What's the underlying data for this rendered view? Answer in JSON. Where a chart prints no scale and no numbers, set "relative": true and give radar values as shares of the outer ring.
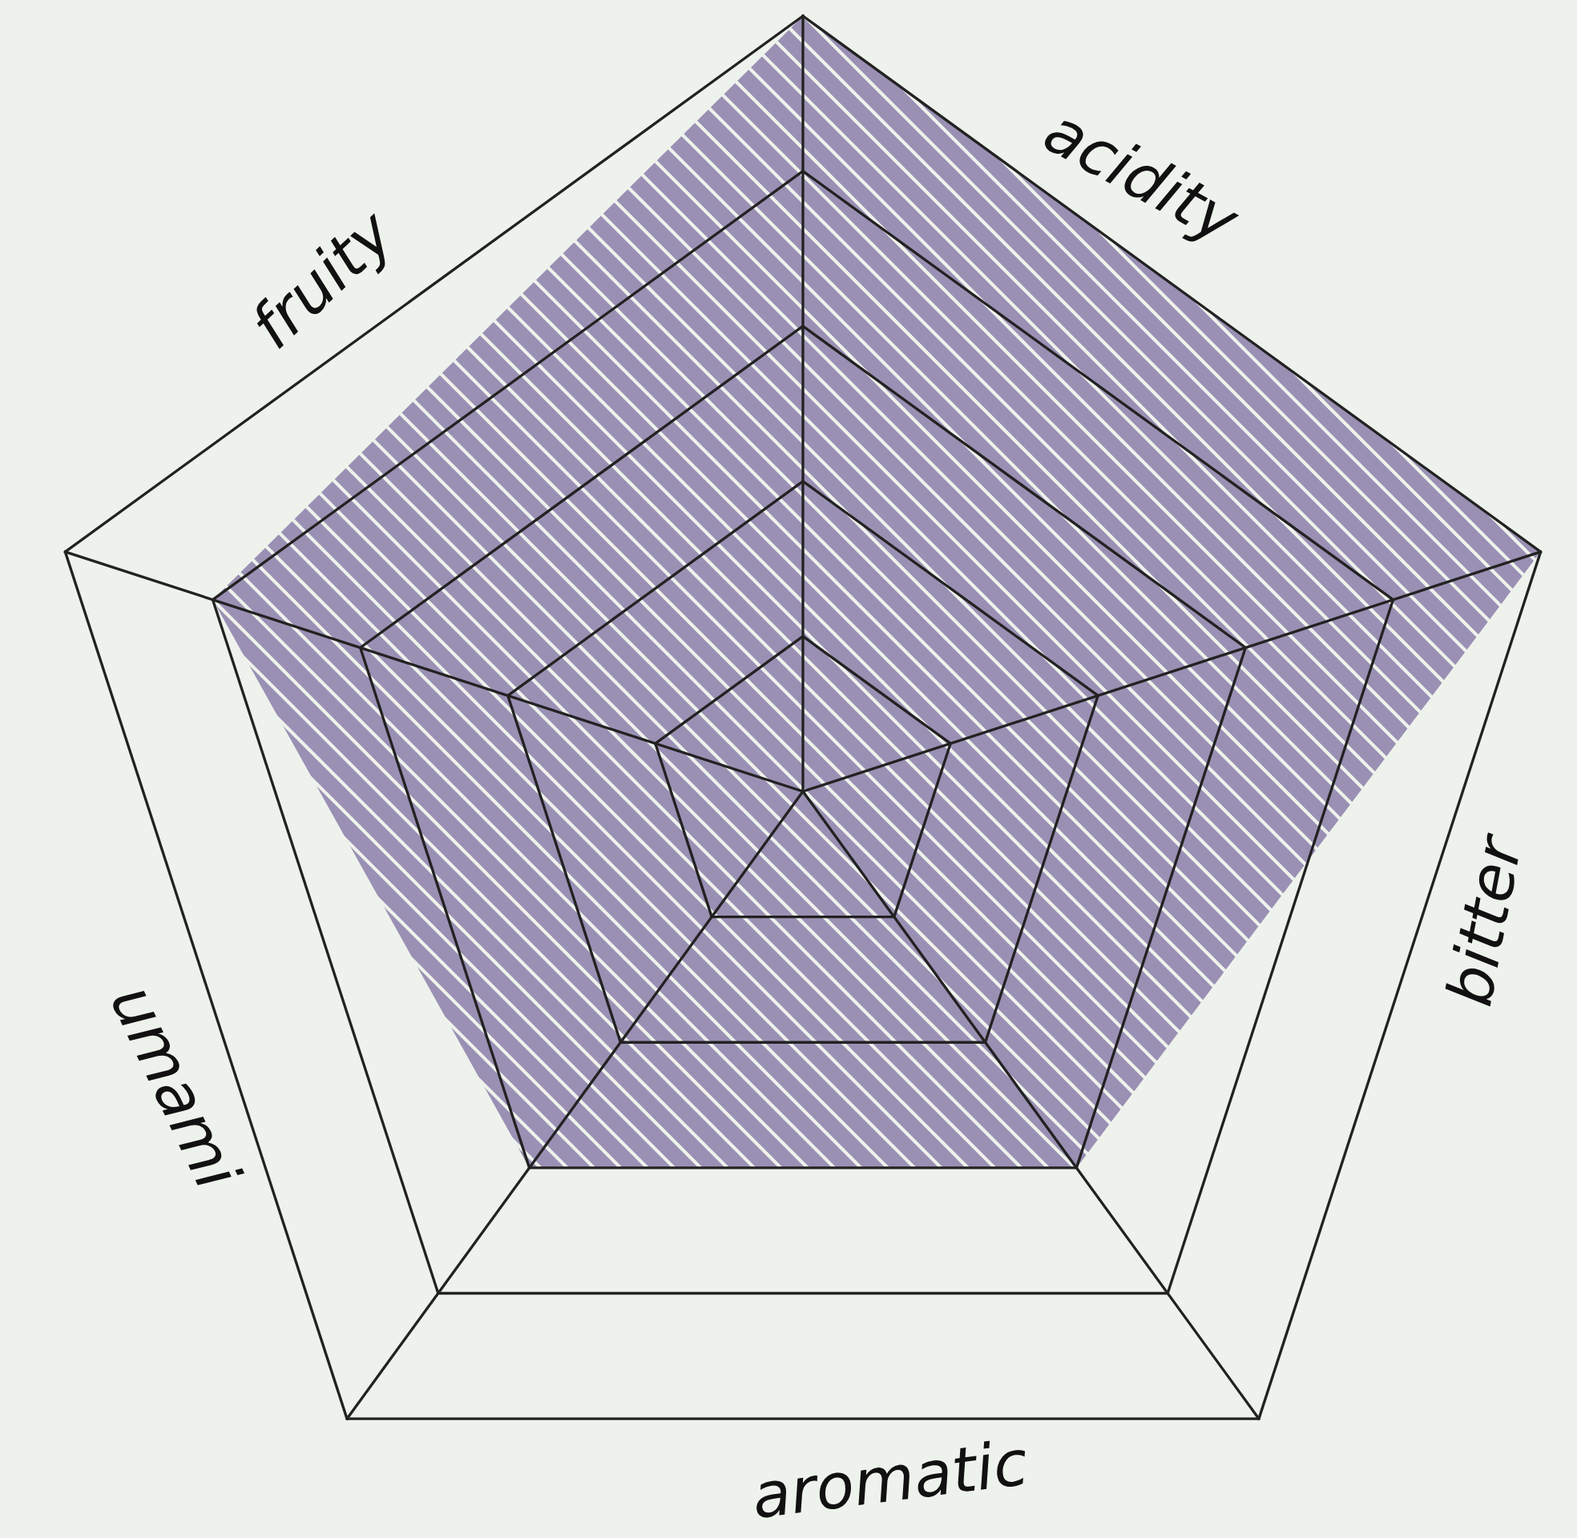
{
  "chart_data": {
    "type": "radar",
    "relative": true,
    "categories": [
      "acidity",
      "bitter",
      "aromatic",
      "umami",
      "fruity"
    ],
    "series": [
      {
        "color": "#9a90b4",
        "values": [
          1,
          1,
          0.6,
          0.6,
          0.8
        ]
      }
    ],
    "grid": true
  }
}
